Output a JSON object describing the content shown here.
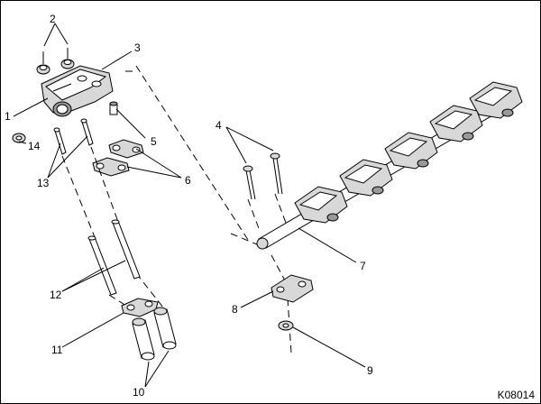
{
  "figure_id": "K08014",
  "callouts": [
    "1",
    "2",
    "3",
    "4",
    "5",
    "6",
    "7",
    "8",
    "9",
    "10",
    "11",
    "12",
    "13",
    "14"
  ]
}
